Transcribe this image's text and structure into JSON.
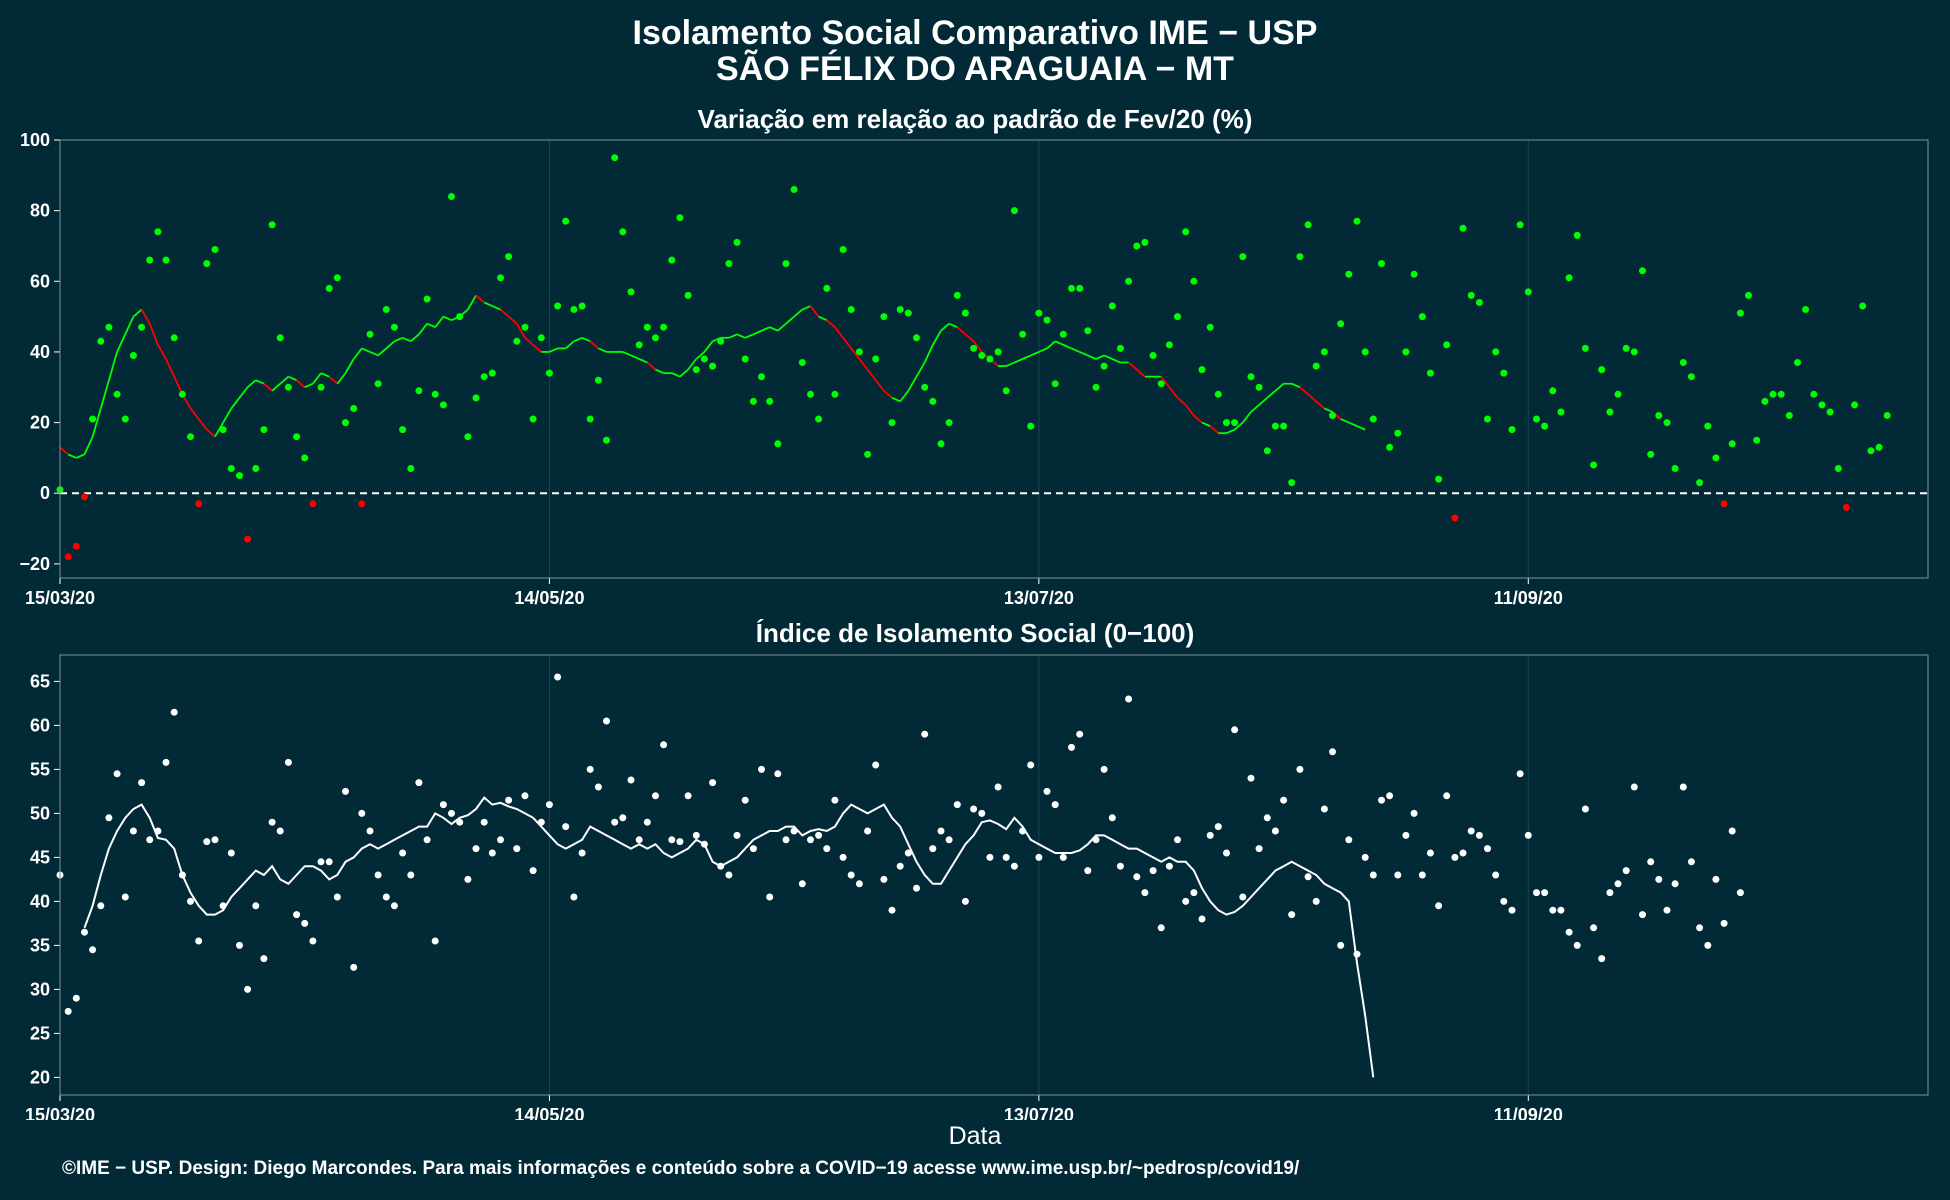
{
  "header": {
    "title_line1": "Isolamento Social Comparativo IME − USP",
    "title_line2": "SÃO FÉLIX DO ARAGUAIA − MT"
  },
  "xlabel": "Data",
  "footer": "©IME − USP. Design: Diego Marcondes. Para mais informações e conteúdo sobre a COVID−19 acesse www.ime.usp.br/~pedrosp/covid19/",
  "colors": {
    "background": "#022a36",
    "positive_points": "#00ff00",
    "negative_points": "#ff0000",
    "index_points": "#ffffff",
    "zero_line": "#ffffff"
  },
  "chart_data": [
    {
      "type": "scatter",
      "subtitle": "Variação em relação ao padrão de Fev/20 (%)",
      "x_axis": "date",
      "x_start": "15/03/20",
      "x_end": "30/10/20",
      "xticks": [
        "15/03/20",
        "14/05/20",
        "13/07/20",
        "11/09/20"
      ],
      "ylim": [
        -24,
        100
      ],
      "yticks": [
        -20,
        0,
        20,
        40,
        60,
        80,
        100
      ],
      "reference_line": 0,
      "legend": "none",
      "points": [
        1,
        -18,
        -15,
        -1,
        21,
        43,
        47,
        28,
        21,
        39,
        47,
        66,
        74,
        66,
        44,
        28,
        16,
        -3,
        65,
        69,
        18,
        7,
        5,
        -13,
        7,
        18,
        76,
        44,
        30,
        16,
        10,
        -3,
        30,
        58,
        61,
        20,
        24,
        -3,
        45,
        31,
        52,
        47,
        18,
        7,
        29,
        55,
        28,
        25,
        84,
        50,
        16,
        27,
        33,
        34,
        61,
        67,
        43,
        47,
        21,
        44,
        34,
        53,
        77,
        52,
        53,
        21,
        32,
        15,
        95,
        74,
        57,
        42,
        47,
        44,
        47,
        66,
        78,
        56,
        35,
        38,
        36,
        43,
        65,
        71,
        38,
        26,
        33,
        26,
        14,
        65,
        86,
        37,
        28,
        21,
        58,
        28,
        69,
        52,
        40,
        11,
        38,
        50,
        20,
        52,
        51,
        44,
        30,
        26,
        14,
        20,
        56,
        51,
        41,
        39,
        38,
        40,
        29,
        80,
        45,
        19,
        51,
        49,
        31,
        45,
        58,
        58,
        46,
        30,
        36,
        53,
        41,
        60,
        70,
        71,
        39,
        31,
        42,
        50,
        74,
        60,
        35,
        47,
        28,
        20,
        20,
        67,
        33,
        30,
        12,
        19,
        19,
        3,
        67,
        76,
        36,
        40,
        22,
        48,
        62,
        77,
        40,
        21,
        65,
        13,
        17,
        40,
        62,
        50,
        34,
        4,
        42,
        -7,
        75,
        56,
        54,
        21,
        40,
        34,
        18,
        76,
        57,
        21,
        19,
        29,
        23,
        61,
        73,
        41,
        8,
        35,
        23,
        28,
        41,
        40,
        63,
        11,
        22,
        20,
        7,
        37,
        33,
        3,
        19,
        10,
        -3,
        14,
        51,
        56,
        15,
        26,
        28,
        28,
        22,
        37,
        52,
        28,
        25,
        23,
        7,
        -4,
        25,
        53,
        12,
        13,
        22
      ],
      "trend": [
        13,
        11,
        10,
        11,
        16,
        24,
        32,
        40,
        45,
        50,
        52,
        48,
        42,
        38,
        33,
        28,
        24,
        21,
        18,
        16,
        20,
        24,
        27,
        30,
        32,
        31,
        29,
        31,
        33,
        32,
        30,
        31,
        34,
        33,
        31,
        34,
        38,
        41,
        40,
        39,
        41,
        43,
        44,
        43,
        45,
        48,
        47,
        50,
        49,
        50,
        52,
        56,
        54,
        53,
        52,
        50,
        48,
        44,
        42,
        40,
        40,
        41,
        41,
        43,
        44,
        43,
        41,
        40,
        40,
        40,
        39,
        38,
        37,
        35,
        34,
        34,
        33,
        35,
        38,
        40,
        43,
        44,
        44,
        45,
        44,
        45,
        46,
        47,
        46,
        48,
        50,
        52,
        53,
        50,
        49,
        47,
        44,
        41,
        38,
        35,
        32,
        29,
        27,
        26,
        29,
        33,
        37,
        42,
        46,
        48,
        47,
        45,
        43,
        40,
        38,
        36,
        36,
        37,
        38,
        39,
        40,
        41,
        43,
        42,
        41,
        40,
        39,
        38,
        39,
        38,
        37,
        37,
        35,
        33,
        33,
        33,
        30,
        27,
        25,
        22,
        20,
        19,
        17,
        17,
        18,
        20,
        23,
        25,
        27,
        29,
        31,
        31,
        30,
        28,
        26,
        24,
        23,
        21,
        20,
        19,
        18
      ]
    },
    {
      "type": "scatter",
      "subtitle": "Índice de Isolamento Social (0−100)",
      "x_axis": "date",
      "x_start": "15/03/20",
      "x_end": "30/10/20",
      "xticks": [
        "15/03/20",
        "14/05/20",
        "13/07/20",
        "11/09/20"
      ],
      "ylim": [
        18,
        68
      ],
      "yticks": [
        20,
        25,
        30,
        35,
        40,
        45,
        50,
        55,
        60,
        65
      ],
      "legend": "none",
      "points": [
        43.0,
        27.5,
        29.0,
        36.5,
        34.5,
        39.5,
        49.5,
        54.5,
        40.5,
        48.0,
        53.5,
        47.0,
        48.0,
        55.8,
        61.5,
        43.0,
        40.0,
        35.5,
        46.8,
        47.0,
        39.5,
        45.5,
        35.0,
        30.0,
        39.5,
        33.5,
        49.0,
        48.0,
        55.8,
        38.5,
        37.5,
        35.5,
        44.5,
        44.5,
        40.5,
        52.5,
        32.5,
        50.0,
        48.0,
        43.0,
        40.5,
        39.5,
        45.5,
        43.0,
        53.5,
        47.0,
        35.5,
        51.0,
        50.0,
        49.0,
        42.5,
        46.0,
        49.0,
        45.5,
        47.0,
        51.5,
        46.0,
        52.0,
        43.5,
        49.0,
        51.0,
        65.5,
        48.5,
        40.5,
        45.5,
        55.0,
        53.0,
        60.5,
        49.0,
        49.5,
        53.8,
        47.0,
        49.0,
        52.0,
        57.8,
        47.0,
        46.8,
        52.0,
        47.5,
        46.5,
        53.5,
        44.0,
        43.0,
        47.5,
        51.5,
        46.0,
        55.0,
        40.5,
        54.5,
        47.0,
        48.0,
        42.0,
        47.0,
        47.5,
        46.0,
        51.5,
        45.0,
        43.0,
        42.0,
        48.0,
        55.5,
        42.5,
        39.0,
        44.0,
        45.5,
        41.5,
        59.0,
        46.0,
        48.0,
        47.0,
        51.0,
        40.0,
        50.5,
        50.0,
        45.0,
        53.0,
        45.0,
        44.0,
        48.0,
        55.5,
        45.0,
        52.5,
        51.0,
        45.0,
        57.5,
        59.0,
        43.5,
        47.0,
        55.0,
        49.5,
        44.0,
        63.0,
        42.8,
        41.0,
        43.5,
        37.0,
        44.0,
        47.0,
        40.0,
        41.0,
        38.0,
        47.5,
        48.5,
        45.5,
        59.5,
        40.5,
        54.0,
        46.0,
        49.5,
        48.0,
        51.5,
        38.5,
        55.0,
        42.8,
        40.0,
        50.5,
        57.0,
        35.0,
        47.0,
        34.0,
        45.0,
        43.0,
        51.5,
        52.0,
        43.0,
        47.5,
        50.0,
        43.0,
        45.5,
        39.5,
        52.0,
        45.0,
        45.5,
        48.0,
        47.5,
        46.0,
        43.0,
        40.0,
        39.0,
        54.5,
        47.5,
        41.0,
        41.0,
        39.0,
        39.0,
        36.5,
        35.0,
        50.5,
        37.0,
        33.5,
        41.0,
        42.0,
        43.5,
        53.0,
        38.5,
        44.5,
        42.5,
        39.0,
        42.0,
        53.0,
        44.5,
        37.0,
        35.0,
        42.5,
        37.5,
        48.0,
        41.0
      ],
      "trend": [
        null,
        null,
        null,
        37.0,
        39.5,
        43.0,
        46.0,
        48.0,
        49.5,
        50.5,
        51.0,
        49.5,
        47.2,
        47.0,
        46.0,
        43.0,
        41.0,
        39.5,
        38.5,
        38.5,
        39.0,
        40.5,
        41.5,
        42.5,
        43.5,
        43.0,
        44.0,
        42.5,
        42.0,
        43.0,
        44.0,
        44.0,
        43.5,
        42.5,
        43.0,
        44.5,
        45.0,
        46.0,
        46.5,
        46.0,
        46.5,
        47.0,
        47.5,
        48.0,
        48.5,
        48.5,
        50.0,
        49.5,
        48.8,
        49.5,
        49.8,
        50.5,
        51.8,
        51.0,
        51.2,
        50.8,
        50.5,
        50.0,
        49.5,
        48.5,
        47.5,
        46.5,
        46.0,
        46.5,
        47.0,
        48.5,
        48.0,
        47.5,
        47.0,
        46.5,
        46.0,
        46.5,
        46.0,
        46.5,
        45.5,
        45.0,
        45.5,
        46.0,
        47.0,
        46.5,
        44.5,
        44.0,
        44.5,
        45.0,
        46.0,
        47.0,
        47.5,
        48.0,
        48.0,
        48.5,
        48.5,
        47.5,
        48.0,
        48.2,
        48.0,
        48.5,
        50.0,
        51.0,
        50.5,
        50.0,
        50.5,
        51.0,
        49.5,
        48.5,
        46.5,
        44.5,
        43.0,
        42.0,
        42.0,
        43.5,
        45.0,
        46.5,
        47.5,
        49.0,
        49.2,
        48.8,
        48.2,
        49.5,
        48.5,
        47.0,
        46.5,
        46.0,
        45.5,
        45.5,
        45.5,
        45.8,
        46.5,
        47.5,
        47.5,
        47.0,
        46.5,
        46.0,
        46.0,
        45.5,
        45.0,
        44.5,
        45.0,
        44.5,
        44.5,
        43.5,
        41.5,
        40.0,
        39.0,
        38.5,
        38.8,
        39.5,
        40.5,
        41.5,
        42.5,
        43.5,
        44.0,
        44.5,
        44.0,
        43.5,
        43.0,
        42.0,
        41.5,
        41.0,
        40.0,
        33.0,
        27.0,
        20.0
      ]
    }
  ]
}
